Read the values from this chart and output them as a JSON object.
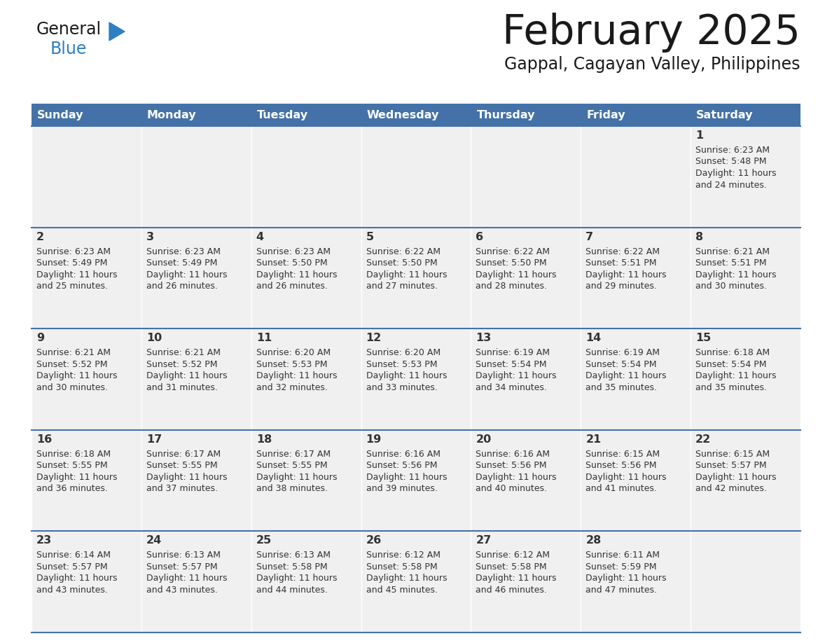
{
  "title": "February 2025",
  "subtitle": "Gappal, Cagayan Valley, Philippines",
  "header_color": "#4472A8",
  "header_text_color": "#FFFFFF",
  "cell_bg": "#F0F0F0",
  "day_headers": [
    "Sunday",
    "Monday",
    "Tuesday",
    "Wednesday",
    "Thursday",
    "Friday",
    "Saturday"
  ],
  "title_color": "#1a1a1a",
  "subtitle_color": "#1a1a1a",
  "line_color": "#4472A8",
  "logo_general_color": "#1a1a1a",
  "logo_blue_color": "#2D7FC1",
  "logo_triangle_color": "#2D7FC1",
  "days": [
    {
      "day": 1,
      "col": 6,
      "row": 0,
      "sunrise": "6:23 AM",
      "sunset": "5:48 PM",
      "daylight": "11 hours and 24 minutes"
    },
    {
      "day": 2,
      "col": 0,
      "row": 1,
      "sunrise": "6:23 AM",
      "sunset": "5:49 PM",
      "daylight": "11 hours and 25 minutes"
    },
    {
      "day": 3,
      "col": 1,
      "row": 1,
      "sunrise": "6:23 AM",
      "sunset": "5:49 PM",
      "daylight": "11 hours and 26 minutes"
    },
    {
      "day": 4,
      "col": 2,
      "row": 1,
      "sunrise": "6:23 AM",
      "sunset": "5:50 PM",
      "daylight": "11 hours and 26 minutes"
    },
    {
      "day": 5,
      "col": 3,
      "row": 1,
      "sunrise": "6:22 AM",
      "sunset": "5:50 PM",
      "daylight": "11 hours and 27 minutes"
    },
    {
      "day": 6,
      "col": 4,
      "row": 1,
      "sunrise": "6:22 AM",
      "sunset": "5:50 PM",
      "daylight": "11 hours and 28 minutes"
    },
    {
      "day": 7,
      "col": 5,
      "row": 1,
      "sunrise": "6:22 AM",
      "sunset": "5:51 PM",
      "daylight": "11 hours and 29 minutes"
    },
    {
      "day": 8,
      "col": 6,
      "row": 1,
      "sunrise": "6:21 AM",
      "sunset": "5:51 PM",
      "daylight": "11 hours and 30 minutes"
    },
    {
      "day": 9,
      "col": 0,
      "row": 2,
      "sunrise": "6:21 AM",
      "sunset": "5:52 PM",
      "daylight": "11 hours and 30 minutes"
    },
    {
      "day": 10,
      "col": 1,
      "row": 2,
      "sunrise": "6:21 AM",
      "sunset": "5:52 PM",
      "daylight": "11 hours and 31 minutes"
    },
    {
      "day": 11,
      "col": 2,
      "row": 2,
      "sunrise": "6:20 AM",
      "sunset": "5:53 PM",
      "daylight": "11 hours and 32 minutes"
    },
    {
      "day": 12,
      "col": 3,
      "row": 2,
      "sunrise": "6:20 AM",
      "sunset": "5:53 PM",
      "daylight": "11 hours and 33 minutes"
    },
    {
      "day": 13,
      "col": 4,
      "row": 2,
      "sunrise": "6:19 AM",
      "sunset": "5:54 PM",
      "daylight": "11 hours and 34 minutes"
    },
    {
      "day": 14,
      "col": 5,
      "row": 2,
      "sunrise": "6:19 AM",
      "sunset": "5:54 PM",
      "daylight": "11 hours and 35 minutes"
    },
    {
      "day": 15,
      "col": 6,
      "row": 2,
      "sunrise": "6:18 AM",
      "sunset": "5:54 PM",
      "daylight": "11 hours and 35 minutes"
    },
    {
      "day": 16,
      "col": 0,
      "row": 3,
      "sunrise": "6:18 AM",
      "sunset": "5:55 PM",
      "daylight": "11 hours and 36 minutes"
    },
    {
      "day": 17,
      "col": 1,
      "row": 3,
      "sunrise": "6:17 AM",
      "sunset": "5:55 PM",
      "daylight": "11 hours and 37 minutes"
    },
    {
      "day": 18,
      "col": 2,
      "row": 3,
      "sunrise": "6:17 AM",
      "sunset": "5:55 PM",
      "daylight": "11 hours and 38 minutes"
    },
    {
      "day": 19,
      "col": 3,
      "row": 3,
      "sunrise": "6:16 AM",
      "sunset": "5:56 PM",
      "daylight": "11 hours and 39 minutes"
    },
    {
      "day": 20,
      "col": 4,
      "row": 3,
      "sunrise": "6:16 AM",
      "sunset": "5:56 PM",
      "daylight": "11 hours and 40 minutes"
    },
    {
      "day": 21,
      "col": 5,
      "row": 3,
      "sunrise": "6:15 AM",
      "sunset": "5:56 PM",
      "daylight": "11 hours and 41 minutes"
    },
    {
      "day": 22,
      "col": 6,
      "row": 3,
      "sunrise": "6:15 AM",
      "sunset": "5:57 PM",
      "daylight": "11 hours and 42 minutes"
    },
    {
      "day": 23,
      "col": 0,
      "row": 4,
      "sunrise": "6:14 AM",
      "sunset": "5:57 PM",
      "daylight": "11 hours and 43 minutes"
    },
    {
      "day": 24,
      "col": 1,
      "row": 4,
      "sunrise": "6:13 AM",
      "sunset": "5:57 PM",
      "daylight": "11 hours and 43 minutes"
    },
    {
      "day": 25,
      "col": 2,
      "row": 4,
      "sunrise": "6:13 AM",
      "sunset": "5:58 PM",
      "daylight": "11 hours and 44 minutes"
    },
    {
      "day": 26,
      "col": 3,
      "row": 4,
      "sunrise": "6:12 AM",
      "sunset": "5:58 PM",
      "daylight": "11 hours and 45 minutes"
    },
    {
      "day": 27,
      "col": 4,
      "row": 4,
      "sunrise": "6:12 AM",
      "sunset": "5:58 PM",
      "daylight": "11 hours and 46 minutes"
    },
    {
      "day": 28,
      "col": 5,
      "row": 4,
      "sunrise": "6:11 AM",
      "sunset": "5:59 PM",
      "daylight": "11 hours and 47 minutes"
    }
  ]
}
